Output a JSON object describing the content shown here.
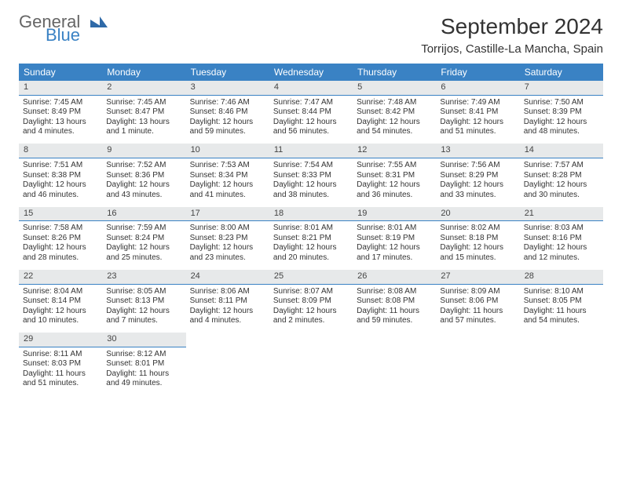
{
  "brand": {
    "word1": "General",
    "word2": "Blue"
  },
  "title": "September 2024",
  "location": "Torrijos, Castille-La Mancha, Spain",
  "colors": {
    "header_bg": "#3a82c4",
    "header_text": "#ffffff",
    "daynum_bg": "#e7e9ea",
    "divider": "#3a82c4",
    "text": "#333333"
  },
  "weekdays": [
    "Sunday",
    "Monday",
    "Tuesday",
    "Wednesday",
    "Thursday",
    "Friday",
    "Saturday"
  ],
  "weeks": [
    [
      {
        "n": "1",
        "sr": "Sunrise: 7:45 AM",
        "ss": "Sunset: 8:49 PM",
        "dl": "Daylight: 13 hours and 4 minutes."
      },
      {
        "n": "2",
        "sr": "Sunrise: 7:45 AM",
        "ss": "Sunset: 8:47 PM",
        "dl": "Daylight: 13 hours and 1 minute."
      },
      {
        "n": "3",
        "sr": "Sunrise: 7:46 AM",
        "ss": "Sunset: 8:46 PM",
        "dl": "Daylight: 12 hours and 59 minutes."
      },
      {
        "n": "4",
        "sr": "Sunrise: 7:47 AM",
        "ss": "Sunset: 8:44 PM",
        "dl": "Daylight: 12 hours and 56 minutes."
      },
      {
        "n": "5",
        "sr": "Sunrise: 7:48 AM",
        "ss": "Sunset: 8:42 PM",
        "dl": "Daylight: 12 hours and 54 minutes."
      },
      {
        "n": "6",
        "sr": "Sunrise: 7:49 AM",
        "ss": "Sunset: 8:41 PM",
        "dl": "Daylight: 12 hours and 51 minutes."
      },
      {
        "n": "7",
        "sr": "Sunrise: 7:50 AM",
        "ss": "Sunset: 8:39 PM",
        "dl": "Daylight: 12 hours and 48 minutes."
      }
    ],
    [
      {
        "n": "8",
        "sr": "Sunrise: 7:51 AM",
        "ss": "Sunset: 8:38 PM",
        "dl": "Daylight: 12 hours and 46 minutes."
      },
      {
        "n": "9",
        "sr": "Sunrise: 7:52 AM",
        "ss": "Sunset: 8:36 PM",
        "dl": "Daylight: 12 hours and 43 minutes."
      },
      {
        "n": "10",
        "sr": "Sunrise: 7:53 AM",
        "ss": "Sunset: 8:34 PM",
        "dl": "Daylight: 12 hours and 41 minutes."
      },
      {
        "n": "11",
        "sr": "Sunrise: 7:54 AM",
        "ss": "Sunset: 8:33 PM",
        "dl": "Daylight: 12 hours and 38 minutes."
      },
      {
        "n": "12",
        "sr": "Sunrise: 7:55 AM",
        "ss": "Sunset: 8:31 PM",
        "dl": "Daylight: 12 hours and 36 minutes."
      },
      {
        "n": "13",
        "sr": "Sunrise: 7:56 AM",
        "ss": "Sunset: 8:29 PM",
        "dl": "Daylight: 12 hours and 33 minutes."
      },
      {
        "n": "14",
        "sr": "Sunrise: 7:57 AM",
        "ss": "Sunset: 8:28 PM",
        "dl": "Daylight: 12 hours and 30 minutes."
      }
    ],
    [
      {
        "n": "15",
        "sr": "Sunrise: 7:58 AM",
        "ss": "Sunset: 8:26 PM",
        "dl": "Daylight: 12 hours and 28 minutes."
      },
      {
        "n": "16",
        "sr": "Sunrise: 7:59 AM",
        "ss": "Sunset: 8:24 PM",
        "dl": "Daylight: 12 hours and 25 minutes."
      },
      {
        "n": "17",
        "sr": "Sunrise: 8:00 AM",
        "ss": "Sunset: 8:23 PM",
        "dl": "Daylight: 12 hours and 23 minutes."
      },
      {
        "n": "18",
        "sr": "Sunrise: 8:01 AM",
        "ss": "Sunset: 8:21 PM",
        "dl": "Daylight: 12 hours and 20 minutes."
      },
      {
        "n": "19",
        "sr": "Sunrise: 8:01 AM",
        "ss": "Sunset: 8:19 PM",
        "dl": "Daylight: 12 hours and 17 minutes."
      },
      {
        "n": "20",
        "sr": "Sunrise: 8:02 AM",
        "ss": "Sunset: 8:18 PM",
        "dl": "Daylight: 12 hours and 15 minutes."
      },
      {
        "n": "21",
        "sr": "Sunrise: 8:03 AM",
        "ss": "Sunset: 8:16 PM",
        "dl": "Daylight: 12 hours and 12 minutes."
      }
    ],
    [
      {
        "n": "22",
        "sr": "Sunrise: 8:04 AM",
        "ss": "Sunset: 8:14 PM",
        "dl": "Daylight: 12 hours and 10 minutes."
      },
      {
        "n": "23",
        "sr": "Sunrise: 8:05 AM",
        "ss": "Sunset: 8:13 PM",
        "dl": "Daylight: 12 hours and 7 minutes."
      },
      {
        "n": "24",
        "sr": "Sunrise: 8:06 AM",
        "ss": "Sunset: 8:11 PM",
        "dl": "Daylight: 12 hours and 4 minutes."
      },
      {
        "n": "25",
        "sr": "Sunrise: 8:07 AM",
        "ss": "Sunset: 8:09 PM",
        "dl": "Daylight: 12 hours and 2 minutes."
      },
      {
        "n": "26",
        "sr": "Sunrise: 8:08 AM",
        "ss": "Sunset: 8:08 PM",
        "dl": "Daylight: 11 hours and 59 minutes."
      },
      {
        "n": "27",
        "sr": "Sunrise: 8:09 AM",
        "ss": "Sunset: 8:06 PM",
        "dl": "Daylight: 11 hours and 57 minutes."
      },
      {
        "n": "28",
        "sr": "Sunrise: 8:10 AM",
        "ss": "Sunset: 8:05 PM",
        "dl": "Daylight: 11 hours and 54 minutes."
      }
    ],
    [
      {
        "n": "29",
        "sr": "Sunrise: 8:11 AM",
        "ss": "Sunset: 8:03 PM",
        "dl": "Daylight: 11 hours and 51 minutes."
      },
      {
        "n": "30",
        "sr": "Sunrise: 8:12 AM",
        "ss": "Sunset: 8:01 PM",
        "dl": "Daylight: 11 hours and 49 minutes."
      },
      null,
      null,
      null,
      null,
      null
    ]
  ]
}
